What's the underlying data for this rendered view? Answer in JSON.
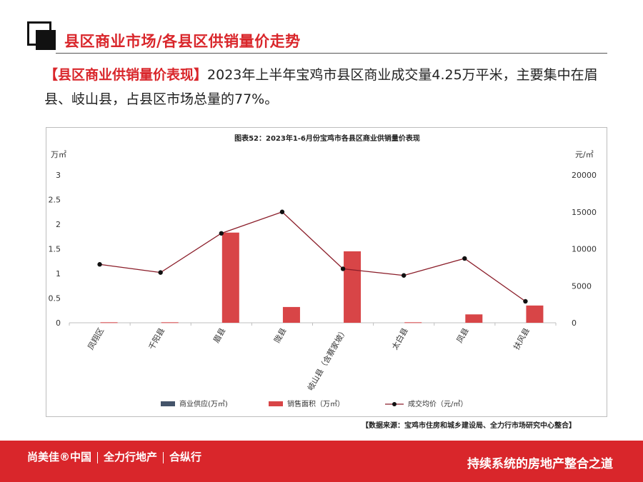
{
  "header": {
    "title": "县区商业市场/各县区供销量价走势"
  },
  "intro": {
    "tag": "【县区商业供销量价表现】",
    "text": "2023年上半年宝鸡市县区商业成交量4.25万平米，主要集中在眉县、岐山县，占县区市场总量的77%。"
  },
  "chart_data": {
    "type": "bar",
    "title": "图表52：2023年1-6月份宝鸡市各县区商业供销量价表现",
    "categories": [
      "凤翔区",
      "千阳县",
      "眉县",
      "陇县",
      "岐山县（含蔡家坡）",
      "太白县",
      "凤县",
      "扶风县"
    ],
    "series": [
      {
        "name": "商业供应(万㎡)",
        "type": "bar",
        "axis": "left",
        "color": "#44546a",
        "values": [
          0,
          0,
          0,
          0,
          0,
          0,
          0,
          0
        ]
      },
      {
        "name": "销售面积（万㎡）",
        "type": "bar",
        "axis": "left",
        "color": "#d84547",
        "values": [
          0.01,
          0.01,
          1.83,
          0.32,
          1.45,
          0.01,
          0.17,
          0.35
        ]
      },
      {
        "name": "成交均价（元/㎡）",
        "type": "line",
        "axis": "right",
        "color": "#8b1e2a",
        "values": [
          7900,
          6800,
          12100,
          15000,
          7300,
          6400,
          8700,
          2900
        ]
      }
    ],
    "left_axis": {
      "label": "万㎡",
      "range": [
        0,
        3
      ],
      "ticks": [
        "0",
        "0.5",
        "1",
        "1.5",
        "2",
        "2.5",
        "3"
      ]
    },
    "right_axis": {
      "label": "元/㎡",
      "range": [
        0,
        20000
      ],
      "ticks": [
        "0",
        "5000",
        "10000",
        "15000",
        "20000"
      ]
    },
    "grid": false,
    "legend_position": "bottom"
  },
  "source": "【数据来源：宝鸡市住房和城乡建设局、全力行市场研究中心整合】",
  "footer": {
    "brand_1": "尚美佳®中国",
    "brand_2": "全力行地产",
    "brand_3": "合纵行",
    "slogan": "持续系统的房地产整合之道"
  },
  "colors": {
    "accent": "#d9262b",
    "bar": "#d84547",
    "supply": "#44546a",
    "line": "#8b1e2a"
  }
}
